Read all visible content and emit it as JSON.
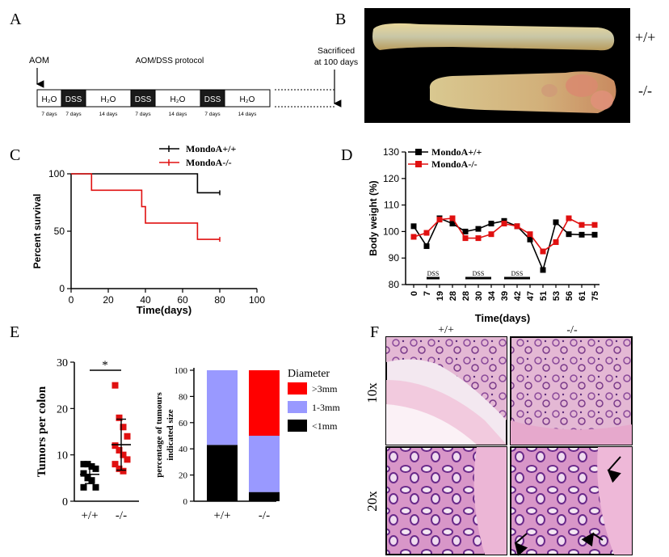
{
  "panels": {
    "A": "A",
    "B": "B",
    "C": "C",
    "D": "D",
    "E": "E",
    "F": "F"
  },
  "panelA": {
    "aom": "AOM",
    "protocol_title": "AOM/DSS protocol",
    "sacrificed_line1": "Sacrificed",
    "sacrificed_line2": "at 100 days",
    "segments": [
      {
        "label": "H₂O",
        "days": "7 days",
        "dark": false
      },
      {
        "label": "DSS",
        "days": "7 days",
        "dark": true
      },
      {
        "label": "H₂O",
        "days": "14 days",
        "dark": false
      },
      {
        "label": "DSS",
        "days": "7 days",
        "dark": true
      },
      {
        "label": "H₂O",
        "days": "14 days",
        "dark": false
      },
      {
        "label": "DSS",
        "days": "7 days",
        "dark": true
      },
      {
        "label": "H₂O",
        "days": "14 days",
        "dark": false
      }
    ]
  },
  "panelB": {
    "wt": "+/+",
    "ko": "-/-"
  },
  "panelF": {
    "col_wt": "+/+",
    "col_ko": "-/-",
    "row1": "10x",
    "row2": "20x"
  },
  "chart_data": [
    {
      "id": "C",
      "type": "line",
      "xlabel": "Time(days)",
      "ylabel": "Percent survival",
      "xlim": [
        0,
        100
      ],
      "ylim": [
        0,
        100
      ],
      "xticks": [
        0,
        20,
        40,
        60,
        80,
        100
      ],
      "yticks": [
        0,
        50,
        100
      ],
      "legend_position": "top",
      "series": [
        {
          "name": "MondoA+/+",
          "color": "#000000",
          "steps": [
            [
              0,
              100
            ],
            [
              68,
              100
            ],
            [
              68,
              83.5
            ],
            [
              80,
              83.5
            ]
          ]
        },
        {
          "name": "MondoA-/-",
          "color": "#e01010",
          "steps": [
            [
              0,
              100
            ],
            [
              11,
              100
            ],
            [
              11,
              85.7
            ],
            [
              38,
              85.7
            ],
            [
              38,
              71.4
            ],
            [
              40,
              71.4
            ],
            [
              40,
              57.1
            ],
            [
              68,
              57.1
            ],
            [
              68,
              42.9
            ],
            [
              80,
              42.9
            ]
          ]
        }
      ]
    },
    {
      "id": "D",
      "type": "line",
      "xlabel": "Time(days)",
      "ylabel": "Body weight (%)",
      "categories": [
        "0",
        "7",
        "19",
        "28",
        "28",
        "30",
        "34",
        "39",
        "42",
        "47",
        "51",
        "53",
        "56",
        "61",
        "75"
      ],
      "ylim": [
        80,
        130
      ],
      "yticks": [
        80,
        90,
        100,
        110,
        120,
        130
      ],
      "legend_position": "top",
      "dss_bars": [
        {
          "label": "DSS",
          "from": 1,
          "to": 2
        },
        {
          "label": "DSS",
          "from": 4,
          "to": 6
        },
        {
          "label": "DSS",
          "from": 7,
          "to": 9
        }
      ],
      "series": [
        {
          "name": "MondoA+/+",
          "color": "#000000",
          "marker": "square",
          "values": [
            102,
            94.5,
            105,
            103,
            100,
            101,
            103,
            104,
            102,
            97,
            85.5,
            103.5,
            99,
            98.8,
            98.8
          ]
        },
        {
          "name": "MondoA-/-",
          "color": "#e01010",
          "marker": "square",
          "values": [
            98,
            99.5,
            104.5,
            105,
            97.5,
            97.5,
            99,
            103,
            102,
            99,
            92.5,
            96,
            105,
            102.5,
            102.5
          ]
        }
      ]
    },
    {
      "id": "E-left",
      "type": "scatter",
      "ylabel": "Tumors per colon",
      "categories": [
        "+/+",
        "-/-"
      ],
      "ylim": [
        0,
        30
      ],
      "yticks": [
        0,
        10,
        20,
        30
      ],
      "significance": "*",
      "series": [
        {
          "name": "+/+",
          "color": "#000000",
          "mean": 5.8,
          "sd": 2.0,
          "values": [
            8,
            8,
            7.5,
            7,
            6,
            5,
            4.5,
            3,
            3
          ]
        },
        {
          "name": "-/-",
          "color": "#e01010",
          "mean": 12.2,
          "sd": 5.5,
          "values": [
            25,
            18,
            16,
            14,
            12,
            11,
            10,
            9,
            8,
            7,
            6.5
          ]
        }
      ]
    },
    {
      "id": "E-right",
      "type": "bar",
      "stacked": true,
      "ylabel_line1": "percentage of tumours",
      "ylabel_line2": "indicated size",
      "categories": [
        "+/+",
        "-/-"
      ],
      "ylim": [
        0,
        100
      ],
      "yticks": [
        0,
        20,
        40,
        60,
        80,
        100
      ],
      "legend_title": "Diameter",
      "series": [
        {
          "name": "<1mm",
          "color": "#000000",
          "values": [
            43,
            7
          ]
        },
        {
          "name": "1-3mm",
          "color": "#9999ff",
          "values": [
            57,
            43
          ]
        },
        {
          "name": ">3mm",
          "color": "#ff0000",
          "values": [
            0,
            50
          ]
        }
      ]
    }
  ]
}
